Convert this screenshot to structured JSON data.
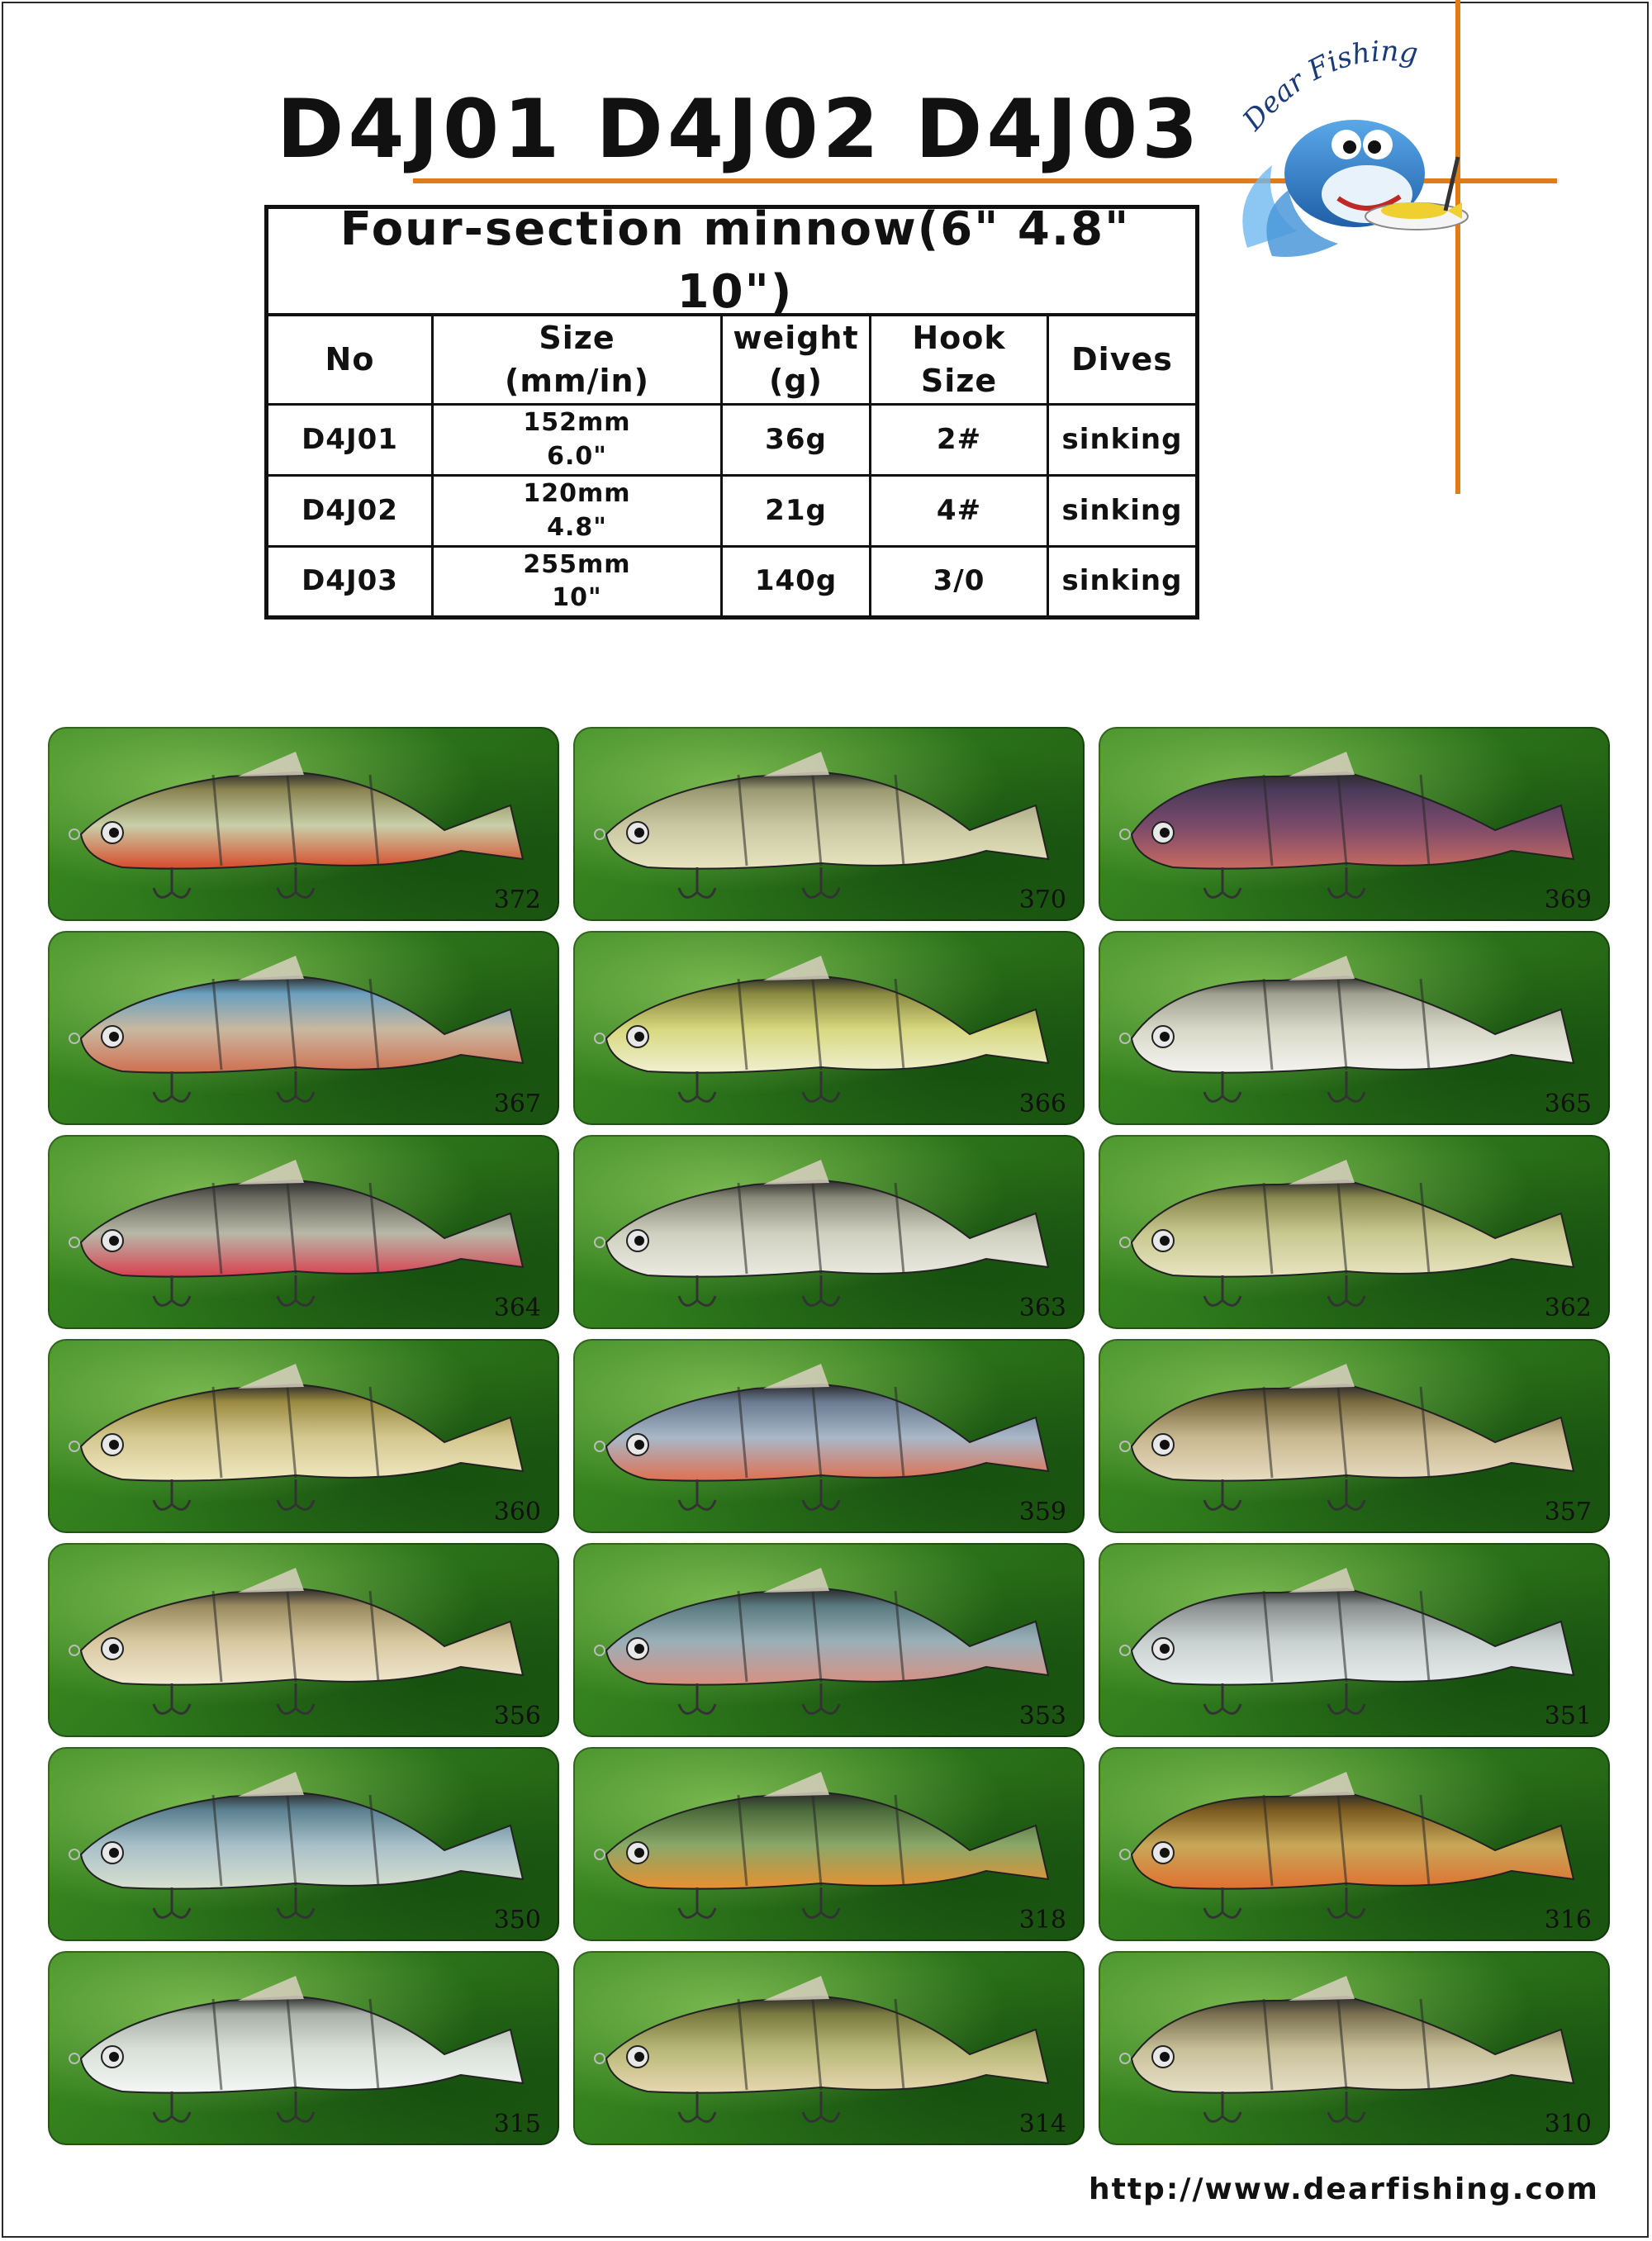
{
  "header": {
    "title": "D4J01 D4J02 D4J03",
    "brand": "Dear Fishing"
  },
  "spec_table": {
    "caption": "Four-section minnow(6\" 4.8\" 10\")",
    "headers": [
      "No",
      "Size\n(mm/in)",
      "weight\n(g)",
      "Hook\nSize",
      "Dives"
    ],
    "rows": [
      [
        "D4J01",
        "152mm\n6.0\"",
        "36g",
        "2#",
        "sinking"
      ],
      [
        "D4J02",
        "120mm\n4.8\"",
        "21g",
        "4#",
        "sinking"
      ],
      [
        "D4J03",
        "255mm\n10\"",
        "140g",
        "3/0",
        "sinking"
      ]
    ]
  },
  "products": [
    {
      "code": "372",
      "colors": [
        "#c8cfa8",
        "#8a8450",
        "#d84a2a"
      ]
    },
    {
      "code": "370",
      "colors": [
        "#c9c7a2",
        "#9a9a72",
        "#e8e4c0"
      ]
    },
    {
      "code": "369",
      "colors": [
        "#7a4a6a",
        "#4a3a5a",
        "#c86a60"
      ]
    },
    {
      "code": "367",
      "colors": [
        "#c9b8a0",
        "#6aa0c0",
        "#d07050"
      ]
    },
    {
      "code": "366",
      "colors": [
        "#d8d880",
        "#8a8a40",
        "#f0f0d0"
      ]
    },
    {
      "code": "365",
      "colors": [
        "#d8d8c8",
        "#a0a090",
        "#f4f4ee"
      ]
    },
    {
      "code": "364",
      "colors": [
        "#b8b8a8",
        "#6a6a60",
        "#d84050"
      ]
    },
    {
      "code": "363",
      "colors": [
        "#d0d0c0",
        "#8a8a7a",
        "#eaeae0"
      ]
    },
    {
      "code": "362",
      "colors": [
        "#c8c890",
        "#8a8a50",
        "#e8e4c0"
      ]
    },
    {
      "code": "360",
      "colors": [
        "#d4c890",
        "#9a8a40",
        "#f0e8c0"
      ]
    },
    {
      "code": "359",
      "colors": [
        "#a8b8c8",
        "#6a7a90",
        "#e07050"
      ]
    },
    {
      "code": "357",
      "colors": [
        "#c8b890",
        "#7a6a40",
        "#e8dcc0"
      ]
    },
    {
      "code": "356",
      "colors": [
        "#d8c8a0",
        "#9a8a60",
        "#f0e8d0"
      ]
    },
    {
      "code": "353",
      "colors": [
        "#9ab0b8",
        "#5a7a80",
        "#d89080"
      ]
    },
    {
      "code": "351",
      "colors": [
        "#c8d0d0",
        "#8a9090",
        "#e8eded"
      ]
    },
    {
      "code": "350",
      "colors": [
        "#a8c0c8",
        "#5a8090",
        "#d8e0d0"
      ]
    },
    {
      "code": "318",
      "colors": [
        "#8aa868",
        "#4a6a3a",
        "#e89030"
      ]
    },
    {
      "code": "316",
      "colors": [
        "#c8a858",
        "#7a5a20",
        "#e07030"
      ]
    },
    {
      "code": "315",
      "colors": [
        "#d8e0d8",
        "#a8b0a8",
        "#f4f6f4"
      ]
    },
    {
      "code": "314",
      "colors": [
        "#b8b878",
        "#7a7a40",
        "#e8d8b0"
      ]
    },
    {
      "code": "310",
      "colors": [
        "#c8c098",
        "#7a7050",
        "#e8e0c8"
      ]
    }
  ],
  "footer": {
    "url": "http://www.dearfishing.com"
  }
}
